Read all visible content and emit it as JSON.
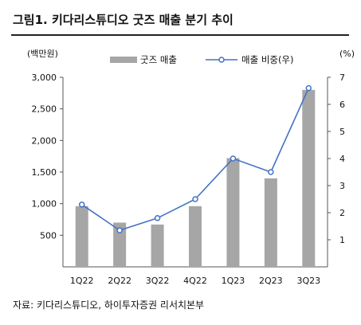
{
  "title": "그림1. 키다리스튜디오 굿즈 매출 분기 추이",
  "source": "자료: 키다리스튜디오, 하이투자증권 리서치본부",
  "chart_data": {
    "type": "bar",
    "categories": [
      "1Q22",
      "2Q22",
      "3Q22",
      "4Q22",
      "1Q23",
      "2Q23",
      "3Q23"
    ],
    "series": [
      {
        "name": "굿즈 매출",
        "type": "bar",
        "axis": "left",
        "color": "#a6a6a6",
        "values": [
          960,
          700,
          670,
          960,
          1720,
          1400,
          2800
        ]
      },
      {
        "name": "매출 비중(우)",
        "type": "line",
        "axis": "right",
        "color": "#4472c4",
        "values": [
          2.3,
          1.35,
          1.8,
          2.5,
          4.0,
          3.5,
          6.6
        ]
      }
    ],
    "y_left": {
      "unit": "(백만원)",
      "ylim": [
        0,
        3000
      ],
      "ticks": [
        "3,000",
        "2,500",
        "2,000",
        "1,500",
        "1,000",
        "500"
      ],
      "tick_values": [
        3000,
        2500,
        2000,
        1500,
        1000,
        500
      ]
    },
    "y_right": {
      "unit": "(%)",
      "ylim": [
        0,
        7
      ],
      "ticks": [
        "7",
        "6",
        "5",
        "4",
        "3",
        "2",
        "1"
      ],
      "tick_values": [
        7,
        6,
        5,
        4,
        3,
        2,
        1
      ]
    },
    "legend_position": "top",
    "grid": false
  }
}
